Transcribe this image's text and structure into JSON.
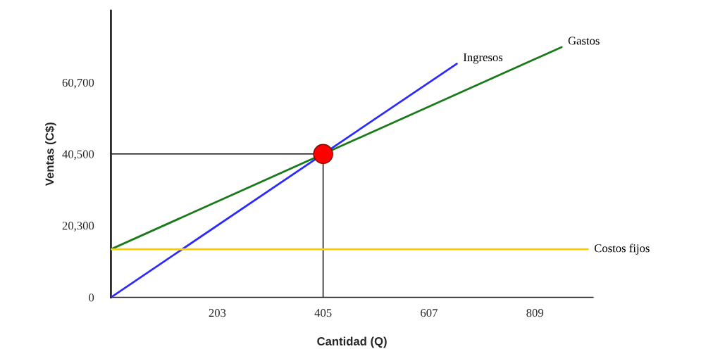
{
  "chart_data": {
    "type": "line",
    "xlabel": "Cantidad (Q)",
    "ylabel": "Ventas (C$)",
    "xlim": [
      0,
      920
    ],
    "ylim": [
      0,
      81000
    ],
    "xticks": [
      203,
      405,
      607,
      809
    ],
    "yticks": [
      0,
      {
        "value": 20300,
        "label": "20,300"
      },
      {
        "value": 40500,
        "label": "40,500"
      },
      {
        "value": 60700,
        "label": "60,700"
      }
    ],
    "grid": false,
    "legend": false,
    "line_style": "solid",
    "series": [
      {
        "name": "Ingresos",
        "color": "#2b2bff",
        "x": [
          0,
          660
        ],
        "values": [
          0,
          66000
        ]
      },
      {
        "name": "Gastos",
        "color": "#1a7a1a",
        "x": [
          0,
          860
        ],
        "values": [
          13600,
          70700
        ]
      },
      {
        "name": "Costos fijos",
        "color": "#ffcc00",
        "x": [
          0,
          910
        ],
        "values": [
          13600,
          13600
        ]
      },
      {
        "type": "scatter",
        "marker": "circle",
        "color": "#ff0000",
        "x": [
          405
        ],
        "values": [
          40500
        ]
      }
    ],
    "ref_lines": [
      {
        "axis": "y",
        "value": 40500,
        "label": null,
        "color": "#000000"
      },
      {
        "axis": "x",
        "value": 405,
        "label": null,
        "color": "#555555"
      }
    ]
  }
}
